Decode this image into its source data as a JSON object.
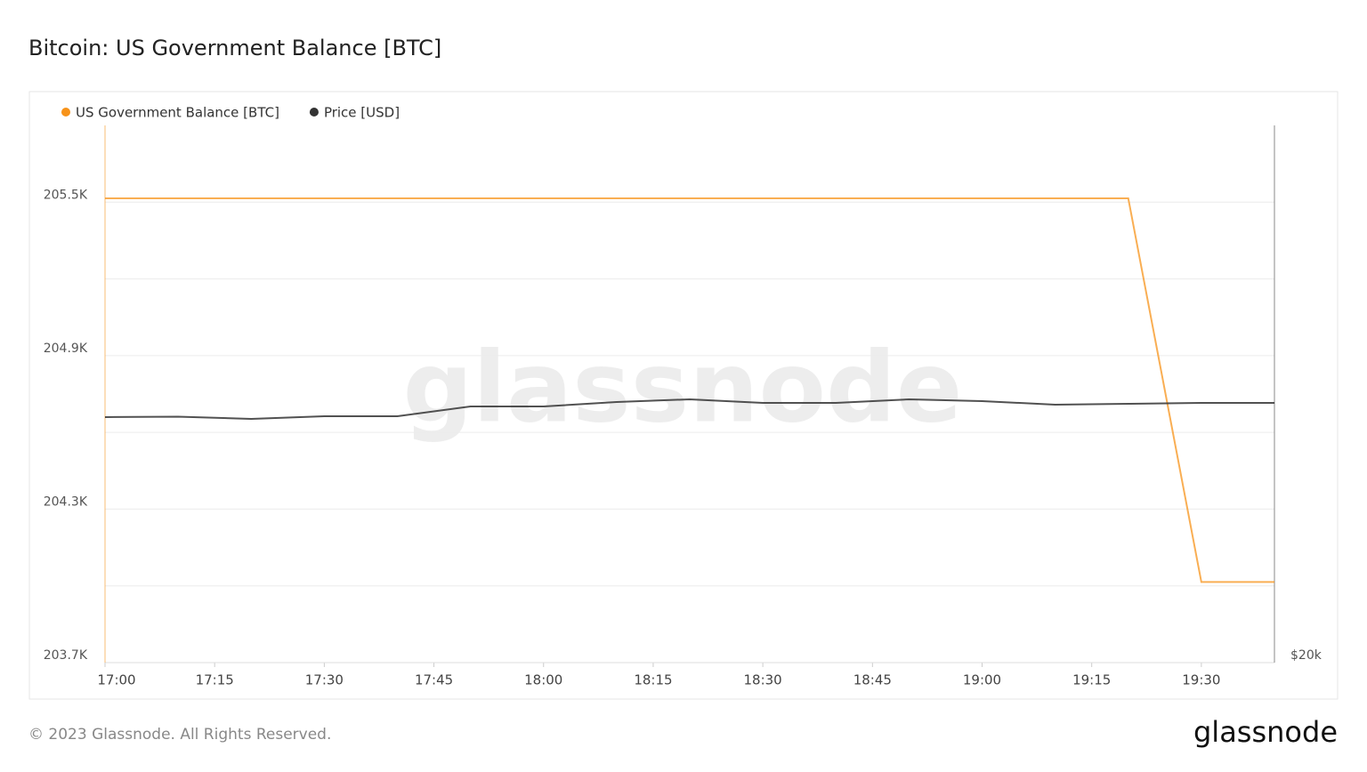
{
  "chart_data": {
    "type": "line",
    "title": "Bitcoin: US Government Balance [BTC]",
    "watermark": "glassnode",
    "footer": "© 2023 Glassnode. All Rights Reserved.",
    "logo": "glassnode",
    "x": [
      "17:00",
      "17:10",
      "17:20",
      "17:30",
      "17:40",
      "17:50",
      "18:00",
      "18:10",
      "18:20",
      "18:30",
      "18:40",
      "18:50",
      "19:00",
      "19:10",
      "19:20",
      "19:30",
      "19:40"
    ],
    "xlim": [
      "17:00",
      "19:40"
    ],
    "xticks": [
      "17:00",
      "17:15",
      "17:30",
      "17:45",
      "18:00",
      "18:15",
      "18:30",
      "18:45",
      "19:00",
      "19:15",
      "19:30"
    ],
    "ylim": [
      203700,
      205800
    ],
    "yticks": [
      {
        "value": 203700,
        "label": "203.7K"
      },
      {
        "value": 204000,
        "label": null
      },
      {
        "value": 204300,
        "label": "204.3K"
      },
      {
        "value": 204600,
        "label": null
      },
      {
        "value": 204900,
        "label": "204.9K"
      },
      {
        "value": 205200,
        "label": null
      },
      {
        "value": 205500,
        "label": "205.5K"
      }
    ],
    "y2lim": [
      20000,
      30000
    ],
    "y2ticks": [
      {
        "value": 20000,
        "label": "$20k"
      }
    ],
    "grid": true,
    "series": [
      {
        "name": "US Government Balance [BTC]",
        "color": "#f7931a",
        "values": [
          205515,
          205515,
          205515,
          205515,
          205515,
          205515,
          205515,
          205515,
          205515,
          205515,
          205515,
          205515,
          205515,
          205515,
          205515,
          204015,
          204015
        ]
      },
      {
        "name": "Price [USD]",
        "color": "#333333",
        "axis": "y2",
        "values": [
          24570,
          24578,
          24536,
          24586,
          24586,
          24768,
          24768,
          24851,
          24901,
          24834,
          24834,
          24901,
          24868,
          24801,
          24818,
          24834,
          24834
        ]
      }
    ]
  }
}
